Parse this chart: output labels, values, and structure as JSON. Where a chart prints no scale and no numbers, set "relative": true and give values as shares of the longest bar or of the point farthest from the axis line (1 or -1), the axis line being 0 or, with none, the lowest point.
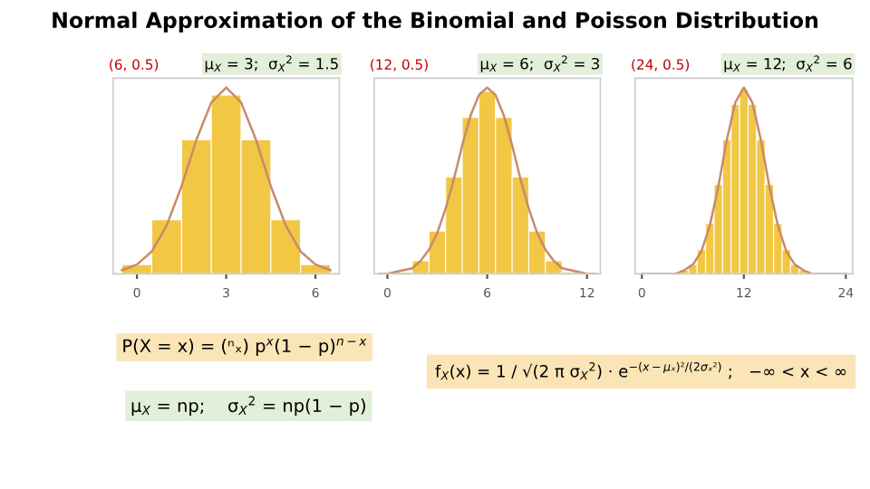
{
  "chart_data": [
    {
      "type": "histogram",
      "title": "(6, 0.5)",
      "subtitle": "μ$_{X}$ = 3;  σ$_{X}$$^{2}$ = 1.5",
      "relative": true,
      "tick_labels": "x",
      "xlim": [
        -0.8,
        6.8
      ],
      "xticks": [
        0,
        3,
        6
      ],
      "bins": [
        -0.5,
        0.5,
        1.5,
        2.5,
        3.5,
        4.5,
        5.5,
        6.5
      ],
      "values": [
        0.05,
        0.29,
        0.72,
        0.96,
        0.72,
        0.29,
        0.05
      ],
      "color": "#f2c744",
      "series": [
        {
          "type": "line",
          "color": "#c98a6a",
          "x": [
            -0.5,
            0,
            0.5,
            1,
            1.5,
            2,
            2.5,
            3,
            3.5,
            4,
            4.5,
            5,
            5.5,
            6,
            6.5
          ],
          "values": [
            0.02,
            0.05,
            0.12,
            0.26,
            0.47,
            0.72,
            0.92,
            1,
            0.92,
            0.72,
            0.47,
            0.26,
            0.12,
            0.05,
            0.02
          ]
        }
      ],
      "annotations": [
        "Normal Approximation of the Binomial and Poisson Distribution",
        "P(X = x) = (ⁿₓ) p$^{x}$(1 − p)$^{n−x}$",
        "μ$_{X}$ = np;    σ$_{X}$$^{2}$ = np(1 − p)",
        "f$_{X}$(x) = 1 / √(2 π σ$_{X}$$^{2}$) · e$^{−(x−μₓ)²/(2σₓ²)}$ ;   −∞ < x < ∞"
      ]
    },
    {
      "type": "histogram",
      "title": "(12, 0.5)",
      "subtitle": "μ$_{X}$ = 6;  σ$_{X}$$^{2}$ = 3",
      "relative": true,
      "tick_labels": "x",
      "xlim": [
        -0.8,
        12.8
      ],
      "xticks": [
        0,
        6,
        12
      ],
      "bins": [
        -0.5,
        0.5,
        1.5,
        2.5,
        3.5,
        4.5,
        5.5,
        6.5,
        7.5,
        8.5,
        9.5,
        10.5,
        11.5,
        12.5
      ],
      "values": [
        0.0,
        0.01,
        0.07,
        0.23,
        0.52,
        0.84,
        0.98,
        0.84,
        0.52,
        0.23,
        0.07,
        0.01,
        0.0
      ],
      "color": "#f2c744",
      "series": [
        {
          "type": "line",
          "color": "#c98a6a",
          "x": [
            -0.5,
            0,
            0.5,
            1,
            1.5,
            2,
            2.5,
            3,
            3.5,
            4,
            4.5,
            5,
            5.5,
            6,
            6.5,
            7,
            7.5,
            8,
            8.5,
            9,
            9.5,
            10,
            10.5,
            11,
            11.5,
            12,
            12.5
          ],
          "values": [
            0.0,
            0.0,
            0.01,
            0.02,
            0.03,
            0.07,
            0.13,
            0.22,
            0.35,
            0.51,
            0.69,
            0.85,
            0.96,
            1,
            0.96,
            0.85,
            0.69,
            0.51,
            0.35,
            0.22,
            0.13,
            0.07,
            0.03,
            0.02,
            0.01,
            0.0,
            0.0
          ]
        }
      ]
    },
    {
      "type": "histogram",
      "title": "(24, 0.5)",
      "subtitle": "μ$_{X}$ = 12;  σ$_{X}$$^{2}$ = 6",
      "relative": true,
      "tick_labels": "x",
      "xlim": [
        -0.8,
        24.8
      ],
      "xticks": [
        0,
        12,
        24
      ],
      "bins": [
        -0.5,
        0.5,
        1.5,
        2.5,
        3.5,
        4.5,
        5.5,
        6.5,
        7.5,
        8.5,
        9.5,
        10.5,
        11.5,
        12.5,
        13.5,
        14.5,
        15.5,
        16.5,
        17.5,
        18.5,
        19.5,
        20.5,
        21.5,
        22.5,
        23.5,
        24.5
      ],
      "values": [
        0,
        0,
        0,
        0,
        0,
        0.02,
        0.05,
        0.13,
        0.27,
        0.48,
        0.72,
        0.91,
        0.99,
        0.91,
        0.72,
        0.48,
        0.27,
        0.13,
        0.05,
        0.02,
        0,
        0,
        0,
        0,
        0
      ],
      "color": "#f2c744",
      "series": [
        {
          "type": "line",
          "color": "#c98a6a",
          "x": [
            0,
            1,
            2,
            3,
            4,
            5,
            6,
            7,
            8,
            9,
            10,
            11,
            12,
            13,
            14,
            15,
            16,
            17,
            18,
            19,
            20,
            21,
            22,
            23,
            24
          ],
          "values": [
            0,
            0,
            0,
            0,
            0,
            0.02,
            0.05,
            0.12,
            0.26,
            0.47,
            0.72,
            0.92,
            1,
            0.92,
            0.72,
            0.47,
            0.26,
            0.12,
            0.05,
            0.02,
            0,
            0,
            0,
            0,
            0
          ]
        }
      ]
    }
  ]
}
